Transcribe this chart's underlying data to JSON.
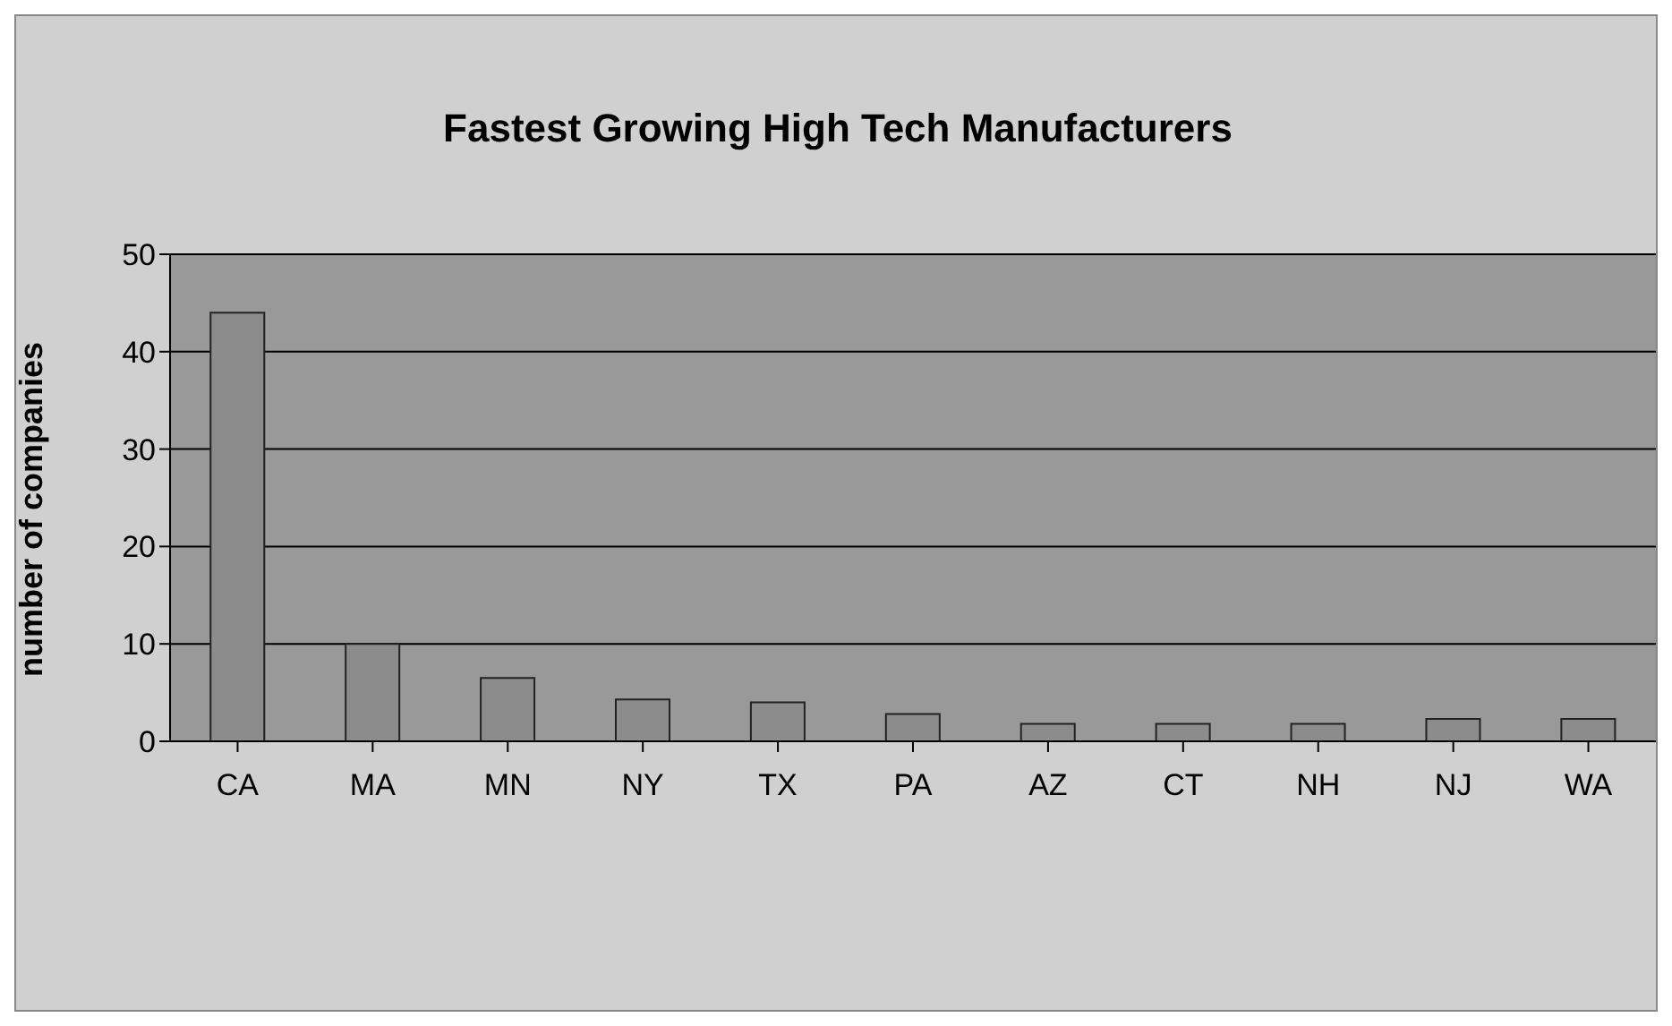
{
  "chart_data": {
    "type": "bar",
    "title": "Fastest Growing High Tech Manufacturers",
    "ylabel": "number of companies",
    "categories": [
      "CA",
      "MA",
      "MN",
      "NY",
      "TX",
      "PA",
      "AZ",
      "CT",
      "NH",
      "NJ",
      "WA"
    ],
    "values": [
      44,
      10,
      6.5,
      4.3,
      4,
      2.8,
      1.8,
      1.8,
      1.8,
      2.3,
      2.3
    ],
    "color": "#8c8c8c",
    "ylim": [
      0,
      50
    ],
    "yticks": [
      0,
      10,
      20,
      30,
      40,
      50
    ],
    "grid": "y",
    "legend": false
  }
}
